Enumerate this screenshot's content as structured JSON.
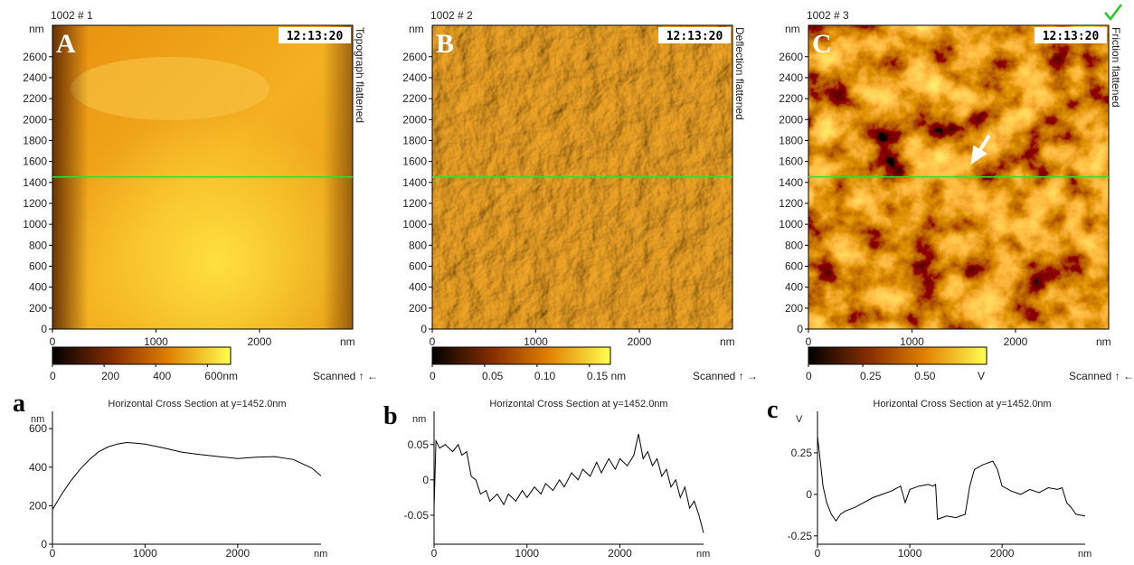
{
  "panels": [
    {
      "label": "A",
      "id": "1002 # 1",
      "time": "12:13:20",
      "channel": "Topograph flattened",
      "y_unit": "nm",
      "x_unit": "nm",
      "xlim": [
        0,
        2900
      ],
      "ylim": [
        0,
        2900
      ],
      "xticks": [
        0,
        1000,
        2000
      ],
      "yticks": [
        0,
        200,
        400,
        600,
        800,
        1000,
        1200,
        1400,
        1600,
        1800,
        2000,
        2200,
        2400,
        2600
      ],
      "cross_section_y": 1452,
      "colorbar": {
        "lim": [
          0,
          690
        ],
        "ticks": [
          0,
          200,
          400,
          {
            "value": 600,
            "label": "600nm"
          }
        ]
      },
      "scan": "Scanned ↑ ←"
    },
    {
      "label": "B",
      "id": "1002 # 2",
      "time": "12:13:20",
      "channel": "Deflection flattened",
      "y_unit": "nm",
      "x_unit": "nm",
      "xlim": [
        0,
        2900
      ],
      "ylim": [
        0,
        2900
      ],
      "xticks": [
        0,
        1000,
        2000
      ],
      "yticks": [
        0,
        200,
        400,
        600,
        800,
        1000,
        1200,
        1400,
        1600,
        1800,
        2000,
        2200,
        2400,
        2600
      ],
      "cross_section_y": 1452,
      "colorbar": {
        "lim": [
          0,
          0.17
        ],
        "ticks": [
          0,
          0.05,
          {
            "value": 0.1,
            "label": "0.10"
          },
          {
            "value": 0.15,
            "label": "0.15 nm"
          }
        ]
      },
      "scan": "Scanned ↑ →"
    },
    {
      "label": "C",
      "id": "1002 # 3",
      "time": "12:13:20",
      "channel": "Friction flattened",
      "y_unit": "nm",
      "x_unit": "nm",
      "xlim": [
        0,
        2900
      ],
      "ylim": [
        0,
        2900
      ],
      "xticks": [
        0,
        1000,
        2000
      ],
      "yticks": [
        0,
        200,
        400,
        600,
        800,
        1000,
        1200,
        1400,
        1600,
        1800,
        2000,
        2200,
        2400,
        2600
      ],
      "cross_section_y": 1452,
      "colorbar": {
        "lim": [
          0,
          0.82
        ],
        "ticks": [
          0,
          0.25,
          {
            "value": 0.5,
            "label": "0.50"
          }
        ],
        "unit": "V"
      },
      "scan": "Scanned ↑ ←"
    }
  ],
  "chart_data": [
    {
      "type": "line",
      "label": "a",
      "title": "Horizontal Cross Section at y=1452.0nm",
      "y_unit": "nm",
      "x_unit": "nm",
      "color": "#000000",
      "xlim": [
        0,
        2900
      ],
      "ylim": [
        0,
        690
      ],
      "xticks": [
        0,
        1000,
        2000
      ],
      "yticks": [
        0,
        200,
        400,
        600
      ],
      "x": [
        0,
        100,
        200,
        300,
        400,
        500,
        600,
        700,
        800,
        900,
        1000,
        1200,
        1400,
        1600,
        1800,
        2000,
        2200,
        2400,
        2600,
        2800,
        2900
      ],
      "values": [
        180,
        260,
        330,
        390,
        440,
        480,
        505,
        520,
        528,
        525,
        520,
        500,
        478,
        465,
        455,
        445,
        452,
        455,
        440,
        395,
        355
      ]
    },
    {
      "type": "line",
      "label": "b",
      "title": "Horizontal Cross Section at y=1452.0nm",
      "y_unit": "nm",
      "x_unit": "nm",
      "color": "#000000",
      "xlim": [
        0,
        2900
      ],
      "ylim": [
        -0.091,
        0.097
      ],
      "xticks": [
        0,
        1000,
        2000
      ],
      "yticks": [
        -0.05,
        0,
        0.05
      ],
      "x": [
        0,
        20,
        60,
        120,
        200,
        260,
        300,
        350,
        400,
        450,
        500,
        560,
        600,
        680,
        750,
        800,
        880,
        950,
        1000,
        1080,
        1150,
        1200,
        1280,
        1350,
        1400,
        1480,
        1550,
        1600,
        1680,
        1750,
        1800,
        1880,
        1950,
        2000,
        2080,
        2150,
        2200,
        2250,
        2300,
        2350,
        2400,
        2450,
        2500,
        2550,
        2600,
        2650,
        2700,
        2750,
        2800,
        2850,
        2900
      ],
      "values": [
        -0.04,
        0.055,
        0.045,
        0.05,
        0.04,
        0.05,
        0.035,
        0.04,
        0.005,
        0.0,
        -0.02,
        -0.015,
        -0.03,
        -0.02,
        -0.035,
        -0.02,
        -0.03,
        -0.015,
        -0.025,
        -0.01,
        -0.02,
        -0.005,
        -0.015,
        0.0,
        -0.01,
        0.01,
        0.0,
        0.015,
        0.005,
        0.025,
        0.01,
        0.03,
        0.015,
        0.03,
        0.02,
        0.035,
        0.065,
        0.03,
        0.04,
        0.02,
        0.03,
        0.005,
        0.015,
        -0.01,
        0.0,
        -0.025,
        -0.01,
        -0.04,
        -0.03,
        -0.05,
        -0.075
      ]
    },
    {
      "type": "line",
      "label": "c",
      "title": "Horizontal Cross Section at y=1452.0nm",
      "y_unit": "V",
      "x_unit": "nm",
      "color": "#000000",
      "xlim": [
        0,
        2900
      ],
      "ylim": [
        -0.3,
        0.5
      ],
      "xticks": [
        0,
        1000,
        2000
      ],
      "yticks": [
        -0.25,
        0,
        0.25
      ],
      "x": [
        0,
        30,
        60,
        100,
        150,
        200,
        250,
        300,
        400,
        500,
        600,
        700,
        800,
        900,
        950,
        1000,
        1100,
        1200,
        1250,
        1280,
        1300,
        1400,
        1500,
        1600,
        1650,
        1700,
        1800,
        1900,
        1950,
        2000,
        2100,
        2200,
        2300,
        2400,
        2500,
        2600,
        2650,
        2700,
        2750,
        2800,
        2900
      ],
      "values": [
        0.35,
        0.2,
        0.05,
        -0.05,
        -0.12,
        -0.16,
        -0.12,
        -0.1,
        -0.08,
        -0.05,
        -0.02,
        0.0,
        0.02,
        0.05,
        -0.05,
        0.03,
        0.05,
        0.06,
        0.05,
        0.06,
        -0.15,
        -0.13,
        -0.14,
        -0.12,
        0.05,
        0.15,
        0.18,
        0.2,
        0.15,
        0.05,
        0.02,
        0.0,
        0.03,
        0.01,
        0.04,
        0.03,
        0.04,
        -0.05,
        -0.08,
        -0.12,
        -0.13
      ]
    }
  ]
}
